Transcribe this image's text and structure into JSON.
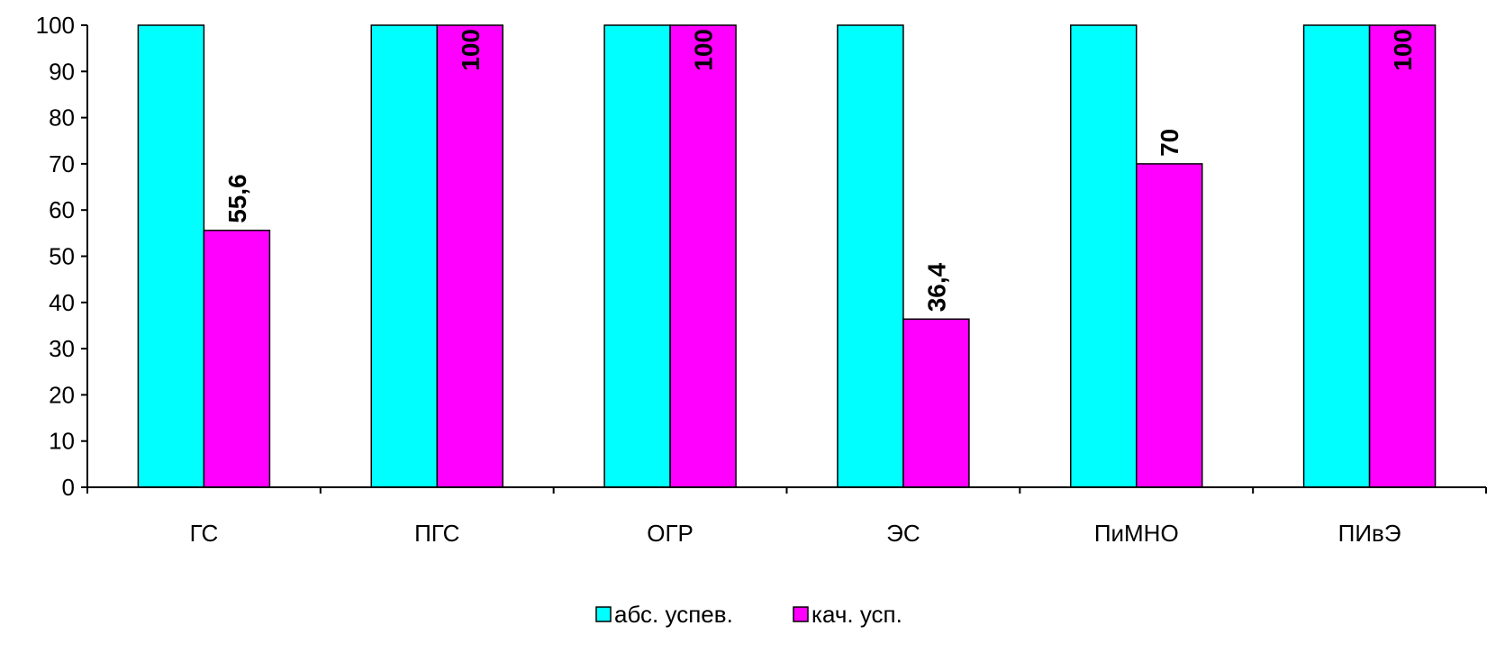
{
  "chart_data": {
    "type": "bar",
    "categories": [
      "ГС",
      "ПГС",
      "ОГР",
      "ЭС",
      "ПиМНО",
      "ПИвЭ"
    ],
    "series": [
      {
        "name": "абс. успев.",
        "color": "#00FFFF",
        "values": [
          100,
          100,
          100,
          100,
          100,
          100
        ],
        "labels": null
      },
      {
        "name": "кач. усп.",
        "color": "#FF00FF",
        "values": [
          55.6,
          100,
          100,
          36.4,
          70,
          100
        ],
        "labels": [
          "55,6",
          "100",
          "100",
          "36,4",
          "70",
          "100"
        ]
      }
    ],
    "ylim": [
      0,
      100
    ],
    "yticks": [
      0,
      10,
      20,
      30,
      40,
      50,
      60,
      70,
      80,
      90,
      100
    ],
    "grid": false,
    "legend_position": "bottom",
    "title": "",
    "xlabel": "",
    "ylabel": ""
  }
}
